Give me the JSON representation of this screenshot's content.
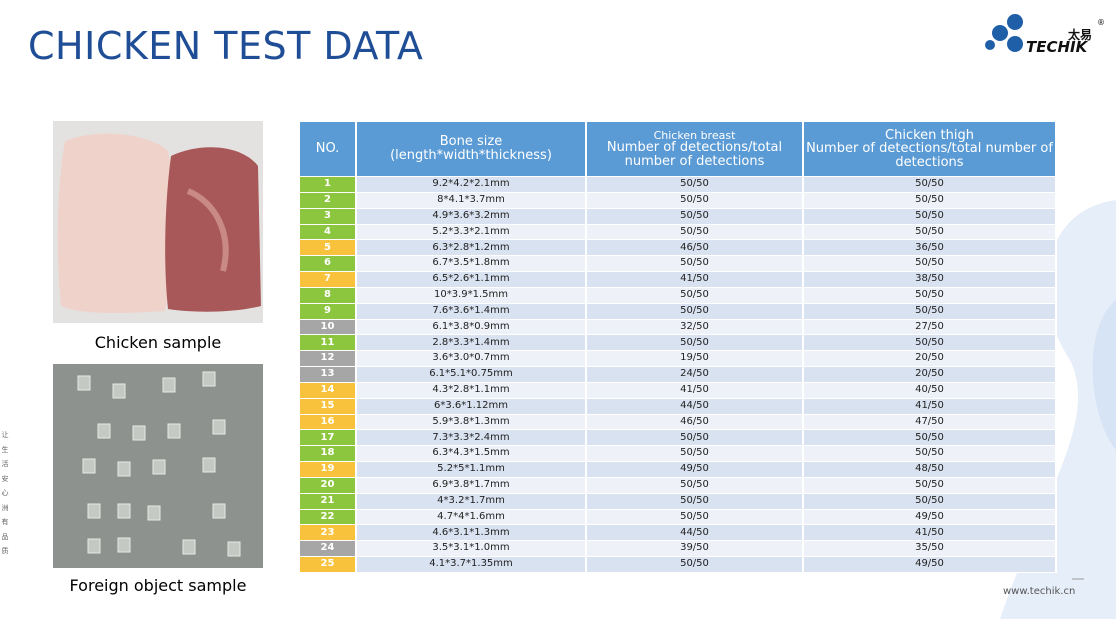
{
  "header": {
    "title": "CHICKEN TEST DATA",
    "logo": {
      "cn": "太易",
      "en": "TECHIK",
      "mark": "®"
    }
  },
  "images": {
    "chicken_caption": "Chicken sample",
    "foreign_caption": "Foreign object sample"
  },
  "side_text": [
    "让",
    "生",
    "活",
    "安",
    "心",
    "洲",
    "有",
    "品",
    "质"
  ],
  "footer": {
    "url": "www.techik.cn"
  },
  "table": {
    "header": {
      "no": "NO.",
      "bone": [
        "Bone size",
        "(length*width*thickness)"
      ],
      "breast": [
        "Chicken breast",
        "Number of detections/total number of detections"
      ],
      "thigh": [
        "Chicken thigh",
        "Number of detections/total number of detections"
      ]
    },
    "rows": [
      {
        "no": "1",
        "bone": "9.2*4.2*2.1mm",
        "breast": "50/50",
        "thigh": "50/50",
        "color": "#8cc63e"
      },
      {
        "no": "2",
        "bone": "8*4.1*3.7mm",
        "breast": "50/50",
        "thigh": "50/50",
        "color": "#8cc63e"
      },
      {
        "no": "3",
        "bone": "4.9*3.6*3.2mm",
        "breast": "50/50",
        "thigh": "50/50",
        "color": "#8cc63e"
      },
      {
        "no": "4",
        "bone": "5.2*3.3*2.1mm",
        "breast": "50/50",
        "thigh": "50/50",
        "color": "#8cc63e"
      },
      {
        "no": "5",
        "bone": "6.3*2.8*1.2mm",
        "breast": "46/50",
        "thigh": "36/50",
        "color": "#f9c23c"
      },
      {
        "no": "6",
        "bone": "6.7*3.5*1.8mm",
        "breast": "50/50",
        "thigh": "50/50",
        "color": "#8cc63e"
      },
      {
        "no": "7",
        "bone": "6.5*2.6*1.1mm",
        "breast": "41/50",
        "thigh": "38/50",
        "color": "#f9c23c"
      },
      {
        "no": "8",
        "bone": "10*3.9*1.5mm",
        "breast": "50/50",
        "thigh": "50/50",
        "color": "#8cc63e"
      },
      {
        "no": "9",
        "bone": "7.6*3.6*1.4mm",
        "breast": "50/50",
        "thigh": "50/50",
        "color": "#8cc63e"
      },
      {
        "no": "10",
        "bone": "6.1*3.8*0.9mm",
        "breast": "32/50",
        "thigh": "27/50",
        "color": "#a6a6a6"
      },
      {
        "no": "11",
        "bone": "2.8*3.3*1.4mm",
        "breast": "50/50",
        "thigh": "50/50",
        "color": "#8cc63e"
      },
      {
        "no": "12",
        "bone": "3.6*3.0*0.7mm",
        "breast": "19/50",
        "thigh": "20/50",
        "color": "#a6a6a6"
      },
      {
        "no": "13",
        "bone": "6.1*5.1*0.75mm",
        "breast": "24/50",
        "thigh": "20/50",
        "color": "#a6a6a6"
      },
      {
        "no": "14",
        "bone": "4.3*2.8*1.1mm",
        "breast": "41/50",
        "thigh": "40/50",
        "color": "#f9c23c"
      },
      {
        "no": "15",
        "bone": "6*3.6*1.12mm",
        "breast": "44/50",
        "thigh": "41/50",
        "color": "#f9c23c"
      },
      {
        "no": "16",
        "bone": "5.9*3.8*1.3mm",
        "breast": "46/50",
        "thigh": "47/50",
        "color": "#f9c23c"
      },
      {
        "no": "17",
        "bone": "7.3*3.3*2.4mm",
        "breast": "50/50",
        "thigh": "50/50",
        "color": "#8cc63e"
      },
      {
        "no": "18",
        "bone": "6.3*4.3*1.5mm",
        "breast": "50/50",
        "thigh": "50/50",
        "color": "#8cc63e"
      },
      {
        "no": "19",
        "bone": "5.2*5*1.1mm",
        "breast": "49/50",
        "thigh": "48/50",
        "color": "#f9c23c"
      },
      {
        "no": "20",
        "bone": "6.9*3.8*1.7mm",
        "breast": "50/50",
        "thigh": "50/50",
        "color": "#8cc63e"
      },
      {
        "no": "21",
        "bone": "4*3.2*1.7mm",
        "breast": "50/50",
        "thigh": "50/50",
        "color": "#8cc63e"
      },
      {
        "no": "22",
        "bone": "4.7*4*1.6mm",
        "breast": "50/50",
        "thigh": "49/50",
        "color": "#8cc63e"
      },
      {
        "no": "23",
        "bone": "4.6*3.1*1.3mm",
        "breast": "44/50",
        "thigh": "41/50",
        "color": "#f9c23c"
      },
      {
        "no": "24",
        "bone": "3.5*3.1*1.0mm",
        "breast": "39/50",
        "thigh": "35/50",
        "color": "#a6a6a6"
      },
      {
        "no": "25",
        "bone": "4.1*3.7*1.35mm",
        "breast": "50/50",
        "thigh": "49/50",
        "color": "#f9c23c"
      }
    ]
  }
}
